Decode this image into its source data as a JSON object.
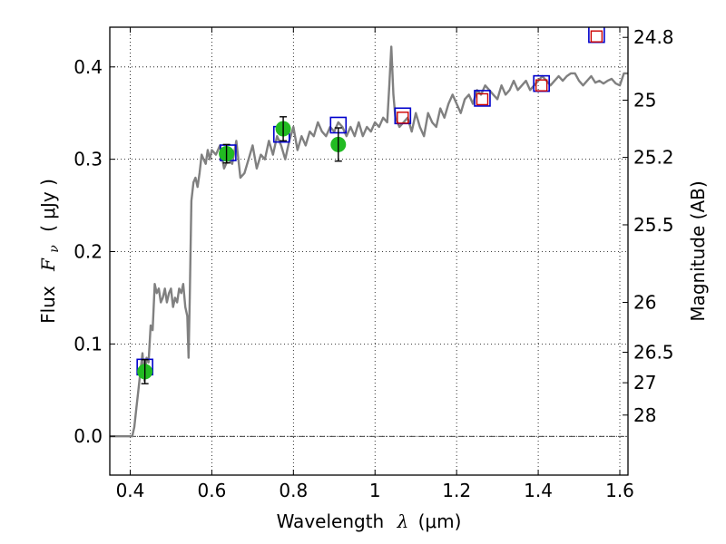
{
  "chart_data": {
    "type": "line",
    "xlabel_text": "Wavelength",
    "xlabel_symbol": "λ",
    "xlabel_unit": "(μm)",
    "ylabel_left_text": "Flux",
    "ylabel_left_symbol": "F",
    "ylabel_left_sub": "ν",
    "ylabel_left_unit": "( μJy )",
    "ylabel_right": "Magnitude (AB)",
    "xlim": [
      0.35,
      1.62
    ],
    "ylim": [
      -0.042,
      0.443
    ],
    "grid": true,
    "x_ticks": [
      0.4,
      0.6,
      0.8,
      1.0,
      1.2,
      1.4,
      1.6
    ],
    "x_tick_labels": [
      "0.4",
      "0.6",
      "0.8",
      "1",
      "1.2",
      "1.4",
      "1.6"
    ],
    "y_ticks": [
      0.0,
      0.1,
      0.2,
      0.3,
      0.4
    ],
    "y_tick_labels": [
      "0.0",
      "0.1",
      "0.2",
      "0.3",
      "0.4"
    ],
    "right_ticks": [
      {
        "label": "24.8",
        "flux": 0.432
      },
      {
        "label": "25",
        "flux": 0.364
      },
      {
        "label": "25.2",
        "flux": 0.302
      },
      {
        "label": "25.5",
        "flux": 0.229
      },
      {
        "label": "26",
        "flux": 0.145
      },
      {
        "label": "26.5",
        "flux": 0.091
      },
      {
        "label": "27",
        "flux": 0.058
      },
      {
        "label": "28",
        "flux": 0.023
      }
    ],
    "series": [
      {
        "kind": "spectrum",
        "color": "#808080",
        "x": [
          0.35,
          0.405,
          0.41,
          0.415,
          0.42,
          0.425,
          0.43,
          0.435,
          0.44,
          0.445,
          0.45,
          0.455,
          0.46,
          0.465,
          0.47,
          0.475,
          0.48,
          0.485,
          0.49,
          0.495,
          0.5,
          0.505,
          0.51,
          0.515,
          0.52,
          0.525,
          0.53,
          0.535,
          0.54,
          0.543,
          0.546,
          0.55,
          0.555,
          0.56,
          0.565,
          0.57,
          0.575,
          0.58,
          0.585,
          0.59,
          0.595,
          0.6,
          0.61,
          0.62,
          0.63,
          0.64,
          0.65,
          0.66,
          0.67,
          0.68,
          0.69,
          0.7,
          0.71,
          0.72,
          0.73,
          0.74,
          0.75,
          0.76,
          0.77,
          0.78,
          0.79,
          0.8,
          0.81,
          0.82,
          0.83,
          0.84,
          0.85,
          0.86,
          0.87,
          0.88,
          0.89,
          0.9,
          0.91,
          0.92,
          0.93,
          0.94,
          0.95,
          0.96,
          0.97,
          0.98,
          0.99,
          1.0,
          1.01,
          1.02,
          1.03,
          1.035,
          1.04,
          1.045,
          1.05,
          1.06,
          1.07,
          1.08,
          1.09,
          1.1,
          1.11,
          1.12,
          1.13,
          1.14,
          1.15,
          1.16,
          1.17,
          1.18,
          1.19,
          1.2,
          1.21,
          1.22,
          1.23,
          1.24,
          1.25,
          1.26,
          1.27,
          1.28,
          1.29,
          1.3,
          1.31,
          1.32,
          1.33,
          1.34,
          1.35,
          1.36,
          1.37,
          1.38,
          1.39,
          1.4,
          1.41,
          1.42,
          1.43,
          1.44,
          1.45,
          1.46,
          1.47,
          1.48,
          1.49,
          1.5,
          1.51,
          1.52,
          1.53,
          1.54,
          1.55,
          1.56,
          1.57,
          1.58,
          1.59,
          1.6,
          1.61,
          1.62
        ],
        "y": [
          0.0,
          0.0,
          0.01,
          0.03,
          0.05,
          0.07,
          0.09,
          0.06,
          0.085,
          0.08,
          0.12,
          0.115,
          0.165,
          0.155,
          0.16,
          0.145,
          0.15,
          0.16,
          0.145,
          0.155,
          0.16,
          0.14,
          0.15,
          0.145,
          0.16,
          0.155,
          0.165,
          0.14,
          0.13,
          0.085,
          0.15,
          0.255,
          0.275,
          0.28,
          0.27,
          0.285,
          0.305,
          0.3,
          0.295,
          0.31,
          0.3,
          0.31,
          0.305,
          0.315,
          0.29,
          0.3,
          0.295,
          0.32,
          0.28,
          0.285,
          0.3,
          0.315,
          0.29,
          0.305,
          0.3,
          0.32,
          0.305,
          0.325,
          0.315,
          0.3,
          0.32,
          0.335,
          0.31,
          0.325,
          0.315,
          0.33,
          0.325,
          0.34,
          0.33,
          0.325,
          0.335,
          0.33,
          0.34,
          0.335,
          0.325,
          0.335,
          0.325,
          0.34,
          0.325,
          0.335,
          0.33,
          0.34,
          0.335,
          0.345,
          0.34,
          0.38,
          0.422,
          0.37,
          0.345,
          0.335,
          0.34,
          0.345,
          0.33,
          0.35,
          0.335,
          0.325,
          0.35,
          0.34,
          0.335,
          0.355,
          0.345,
          0.36,
          0.37,
          0.36,
          0.35,
          0.365,
          0.37,
          0.36,
          0.375,
          0.37,
          0.38,
          0.375,
          0.37,
          0.365,
          0.38,
          0.37,
          0.375,
          0.385,
          0.375,
          0.38,
          0.385,
          0.375,
          0.38,
          0.385,
          0.39,
          0.385,
          0.38,
          0.385,
          0.39,
          0.385,
          0.39,
          0.393,
          0.393,
          0.385,
          0.38,
          0.385,
          0.39,
          0.383,
          0.385,
          0.382,
          0.385,
          0.387,
          0.382,
          0.38,
          0.393,
          0.393
        ]
      },
      {
        "kind": "observed",
        "color": "#22bb22",
        "points": [
          {
            "x": 0.436,
            "y": 0.07,
            "err": 0.013
          },
          {
            "x": 0.636,
            "y": 0.306,
            "err": 0.01
          },
          {
            "x": 0.775,
            "y": 0.333,
            "err": 0.013
          },
          {
            "x": 0.91,
            "y": 0.316,
            "err": 0.018
          }
        ]
      },
      {
        "kind": "model_filter_large",
        "color": "#0000cc",
        "points": [
          {
            "x": 0.436,
            "y": 0.075
          },
          {
            "x": 0.64,
            "y": 0.307
          },
          {
            "x": 0.771,
            "y": 0.327
          },
          {
            "x": 0.91,
            "y": 0.337
          },
          {
            "x": 1.068,
            "y": 0.347
          },
          {
            "x": 1.263,
            "y": 0.366
          },
          {
            "x": 1.408,
            "y": 0.382
          },
          {
            "x": 1.543,
            "y": 0.435
          }
        ]
      },
      {
        "kind": "model_filter_small",
        "color": "#cc0000",
        "points": [
          {
            "x": 1.068,
            "y": 0.345
          },
          {
            "x": 1.263,
            "y": 0.365
          },
          {
            "x": 1.408,
            "y": 0.38
          },
          {
            "x": 1.543,
            "y": 0.433
          }
        ]
      }
    ]
  }
}
